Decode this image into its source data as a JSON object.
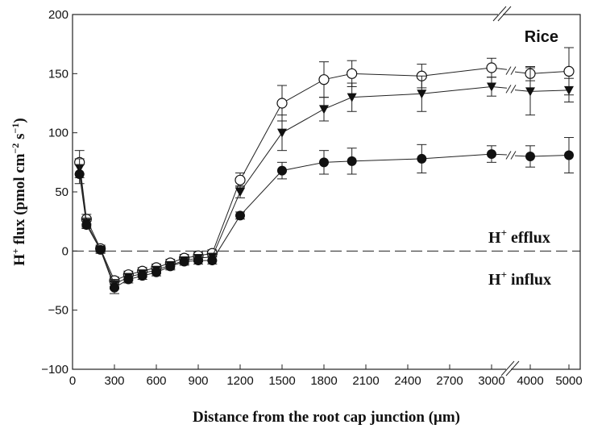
{
  "chart_data": {
    "type": "line",
    "title": "",
    "panel_label": "Rice",
    "xlabel": "Distance from the root cap junction (μm)",
    "ylabel": {
      "main": "H",
      "sup": "+",
      "rest": " flux (pmol cm",
      "sup2": "−2",
      "mid": " s",
      "sup3": "−1",
      "end": ")"
    },
    "ylim": [
      -100,
      200
    ],
    "yticks": [
      -100,
      -50,
      0,
      50,
      100,
      150,
      200
    ],
    "xticks": [
      0,
      300,
      600,
      900,
      1200,
      1500,
      1800,
      2100,
      2400,
      2700,
      3000,
      4000,
      5000
    ],
    "x_axis_break_between": [
      3000,
      4000
    ],
    "annotations": {
      "efflux": {
        "main": "H",
        "sup": "+",
        "rest": " efflux"
      },
      "influx": {
        "main": "H",
        "sup": "+",
        "rest": " influx"
      }
    },
    "zero_line": "dashed",
    "grid": false,
    "x": [
      50,
      100,
      200,
      300,
      400,
      500,
      600,
      700,
      800,
      900,
      1000,
      1200,
      1500,
      1800,
      2000,
      2500,
      3000,
      4000,
      5000
    ],
    "series": [
      {
        "marker": "open-circle",
        "values": [
          75,
          27,
          2,
          -25,
          -20,
          -17,
          -14,
          -10,
          -6,
          -4,
          -2,
          60,
          125,
          145,
          150,
          148,
          155,
          150,
          152
        ],
        "errors": [
          10,
          4,
          3,
          3,
          3,
          3,
          3,
          3,
          3,
          3,
          3,
          6,
          15,
          15,
          11,
          10,
          8,
          6,
          20
        ]
      },
      {
        "marker": "filled-triangle-down",
        "values": [
          70,
          24,
          1,
          -28,
          -22,
          -19,
          -16,
          -12,
          -8,
          -6,
          -5,
          50,
          100,
          120,
          130,
          133,
          139,
          135,
          136
        ],
        "errors": [
          8,
          4,
          3,
          4,
          3,
          3,
          3,
          3,
          3,
          3,
          3,
          5,
          15,
          10,
          12,
          15,
          8,
          20,
          10
        ]
      },
      {
        "marker": "filled-circle",
        "values": [
          65,
          22,
          1,
          -31,
          -24,
          -21,
          -18,
          -13,
          -9,
          -8,
          -8,
          30,
          68,
          75,
          76,
          78,
          82,
          80,
          81
        ],
        "errors": [
          8,
          3,
          2,
          5,
          3,
          3,
          3,
          3,
          3,
          3,
          3,
          3,
          7,
          10,
          11,
          12,
          7,
          9,
          15
        ]
      }
    ]
  }
}
